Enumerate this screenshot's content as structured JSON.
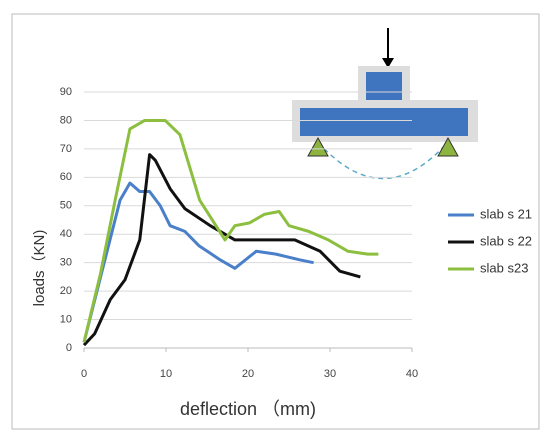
{
  "chart_data": {
    "type": "line",
    "x_label": "deflection （mm)",
    "y_label": "loads（KN)",
    "xlim": [
      0,
      40
    ],
    "xticks": [
      0,
      10,
      20,
      30,
      40
    ],
    "ylim": [
      0,
      90
    ],
    "yticks": [
      0,
      10,
      20,
      30,
      40,
      50,
      60,
      70,
      80,
      90
    ],
    "grid": true,
    "legend": "right",
    "series": [
      {
        "name": "slab s 21",
        "color": "#4a7fc9",
        "x": [
          0,
          4.4,
          5.6,
          6.8,
          8,
          9.3,
          10.5,
          12.3,
          14,
          16.6,
          18.4,
          21,
          23.4,
          26.3,
          28
        ],
        "values": [
          2,
          52,
          58,
          55,
          55,
          50,
          43,
          41,
          36,
          31,
          28,
          34,
          33,
          31,
          30
        ]
      },
      {
        "name": "slab s 22",
        "color": "#111111",
        "x": [
          0,
          1.3,
          3.2,
          5,
          6.8,
          8,
          8.7,
          10.5,
          12.3,
          15.4,
          18.4,
          21.5,
          25.7,
          28.8,
          31.2,
          33.7
        ],
        "values": [
          1,
          5,
          17,
          24,
          38,
          68,
          66,
          56,
          49,
          43,
          38,
          38,
          38,
          34,
          27,
          25
        ]
      },
      {
        "name": "slab s23",
        "color": "#8cbf3f",
        "x": [
          0,
          2,
          3.8,
          5.6,
          7.4,
          9.9,
          11.7,
          14.1,
          17.2,
          18.4,
          20.2,
          22,
          23.8,
          25,
          27.4,
          29.8,
          32.2,
          34.6,
          35.9
        ],
        "values": [
          2,
          26,
          52,
          77,
          80,
          80,
          75,
          52,
          38,
          43,
          44,
          47,
          48,
          43,
          41,
          38,
          34,
          33,
          33
        ]
      }
    ]
  }
}
